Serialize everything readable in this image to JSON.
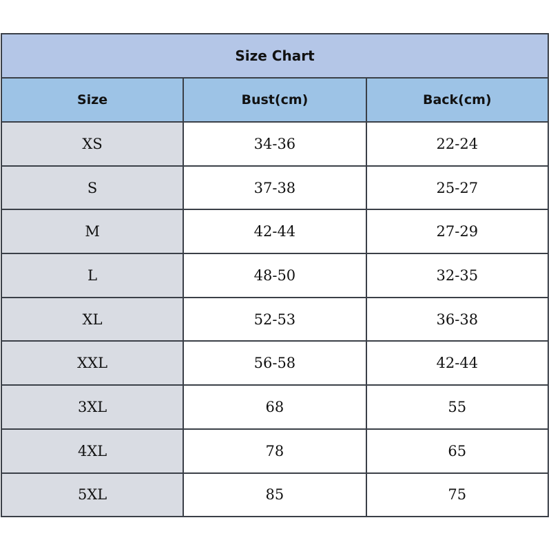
{
  "title": "Size Chart",
  "headers": [
    "Size",
    "Bust(cm)",
    "Back(cm)"
  ],
  "rows": [
    [
      "XS",
      "34-36",
      "22-24"
    ],
    [
      "S",
      "37-38",
      "25-27"
    ],
    [
      "M",
      "42-44",
      "27-29"
    ],
    [
      "L",
      "48-50",
      "32-35"
    ],
    [
      "XL",
      "52-53",
      "36-38"
    ],
    [
      "XXL",
      "56-58",
      "42-44"
    ],
    [
      "3XL",
      "68",
      "55"
    ],
    [
      "4XL",
      "78",
      "65"
    ],
    [
      "5XL",
      "85",
      "75"
    ]
  ],
  "colors": {
    "title_bg": "#b4c6e7",
    "header_bg": "#9dc3e6",
    "size_col_bg": "#d9dce3",
    "border": "#3a3f47"
  }
}
